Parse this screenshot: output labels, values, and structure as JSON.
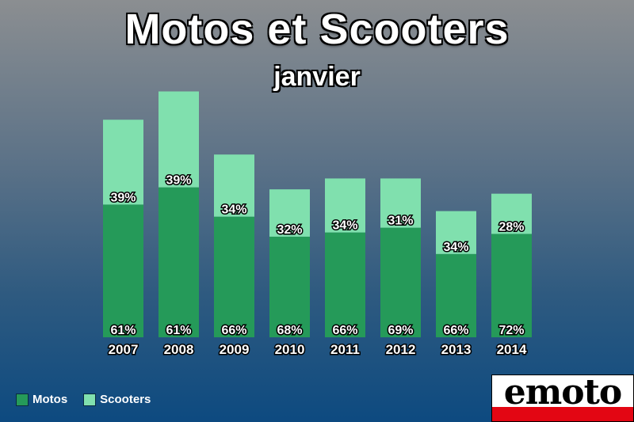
{
  "chart_data": {
    "type": "bar",
    "stacked": true,
    "title": "Motos et Scooters",
    "subtitle": "janvier",
    "categories": [
      "2007",
      "2008",
      "2009",
      "2010",
      "2011",
      "2012",
      "2013",
      "2014"
    ],
    "totals": [
      100,
      113,
      84,
      68,
      73,
      73,
      58,
      66
    ],
    "series": [
      {
        "name": "Motos",
        "color": "#259a59",
        "percent_labels": [
          "61%",
          "61%",
          "66%",
          "68%",
          "66%",
          "69%",
          "66%",
          "72%"
        ],
        "percents": [
          61,
          61,
          66,
          68,
          66,
          69,
          66,
          72
        ]
      },
      {
        "name": "Scooters",
        "color": "#80e0ae",
        "percent_labels": [
          "39%",
          "39%",
          "34%",
          "32%",
          "34%",
          "31%",
          "34%",
          "28%"
        ],
        "percents": [
          39,
          39,
          34,
          32,
          34,
          31,
          34,
          28
        ]
      }
    ],
    "ylim": [
      0,
      115
    ],
    "grid": false,
    "legend_position": "bottom-left"
  },
  "logo": {
    "text": "emoto",
    "band_color": "#e30613"
  }
}
